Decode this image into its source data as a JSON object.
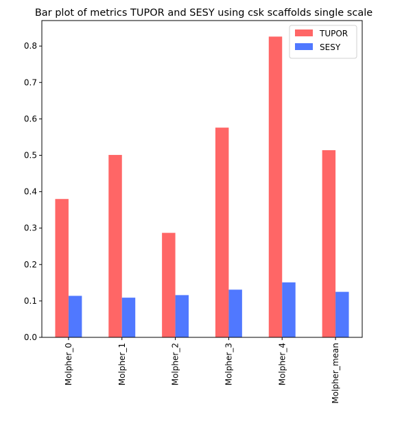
{
  "chart_data": {
    "type": "bar",
    "title": "Bar plot of metrics TUPOR and SESY using csk scaffolds single scale",
    "xlabel": "",
    "ylabel": "",
    "categories": [
      "Molpher_0",
      "Molpher_1",
      "Molpher_2",
      "Molpher_3",
      "Molpher_4",
      "Molpher_mean"
    ],
    "series": [
      {
        "name": "TUPOR",
        "color": "#ff6666",
        "values": [
          0.38,
          0.501,
          0.287,
          0.576,
          0.826,
          0.514
        ]
      },
      {
        "name": "SESY",
        "color": "#5078ff",
        "values": [
          0.114,
          0.109,
          0.116,
          0.131,
          0.151,
          0.125
        ]
      }
    ],
    "ylim": [
      0,
      0.87
    ],
    "yticks": [
      0.0,
      0.1,
      0.2,
      0.3,
      0.4,
      0.5,
      0.6,
      0.7,
      0.8
    ],
    "ytick_labels": [
      "0.0",
      "0.1",
      "0.2",
      "0.3",
      "0.4",
      "0.5",
      "0.6",
      "0.7",
      "0.8"
    ],
    "grid": false,
    "legend_position": "top-right"
  }
}
